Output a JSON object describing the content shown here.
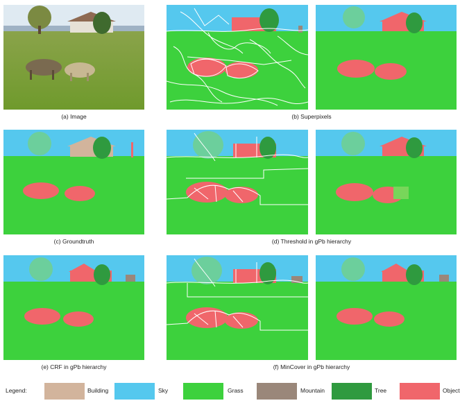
{
  "captions": {
    "a": "(a) Image",
    "b": "(b) Superpixels",
    "c": "(c) Groundtruth",
    "d": "(d) Threshold in gPb hierarchy",
    "e": "(e) CRF in gPb hierarchy",
    "f": "(f) MinCover in gPb hierarchy"
  },
  "legend": {
    "title": "Legend:",
    "items": [
      {
        "label": "Building",
        "color": "#d2b49c"
      },
      {
        "label": "Sky",
        "color": "#55c8ee"
      },
      {
        "label": "Grass",
        "color": "#3dd13d"
      },
      {
        "label": "Mountain",
        "color": "#9a877a"
      },
      {
        "label": "Tree",
        "color": "#2f9a3f"
      },
      {
        "label": "Object",
        "color": "#f0666b"
      }
    ]
  }
}
